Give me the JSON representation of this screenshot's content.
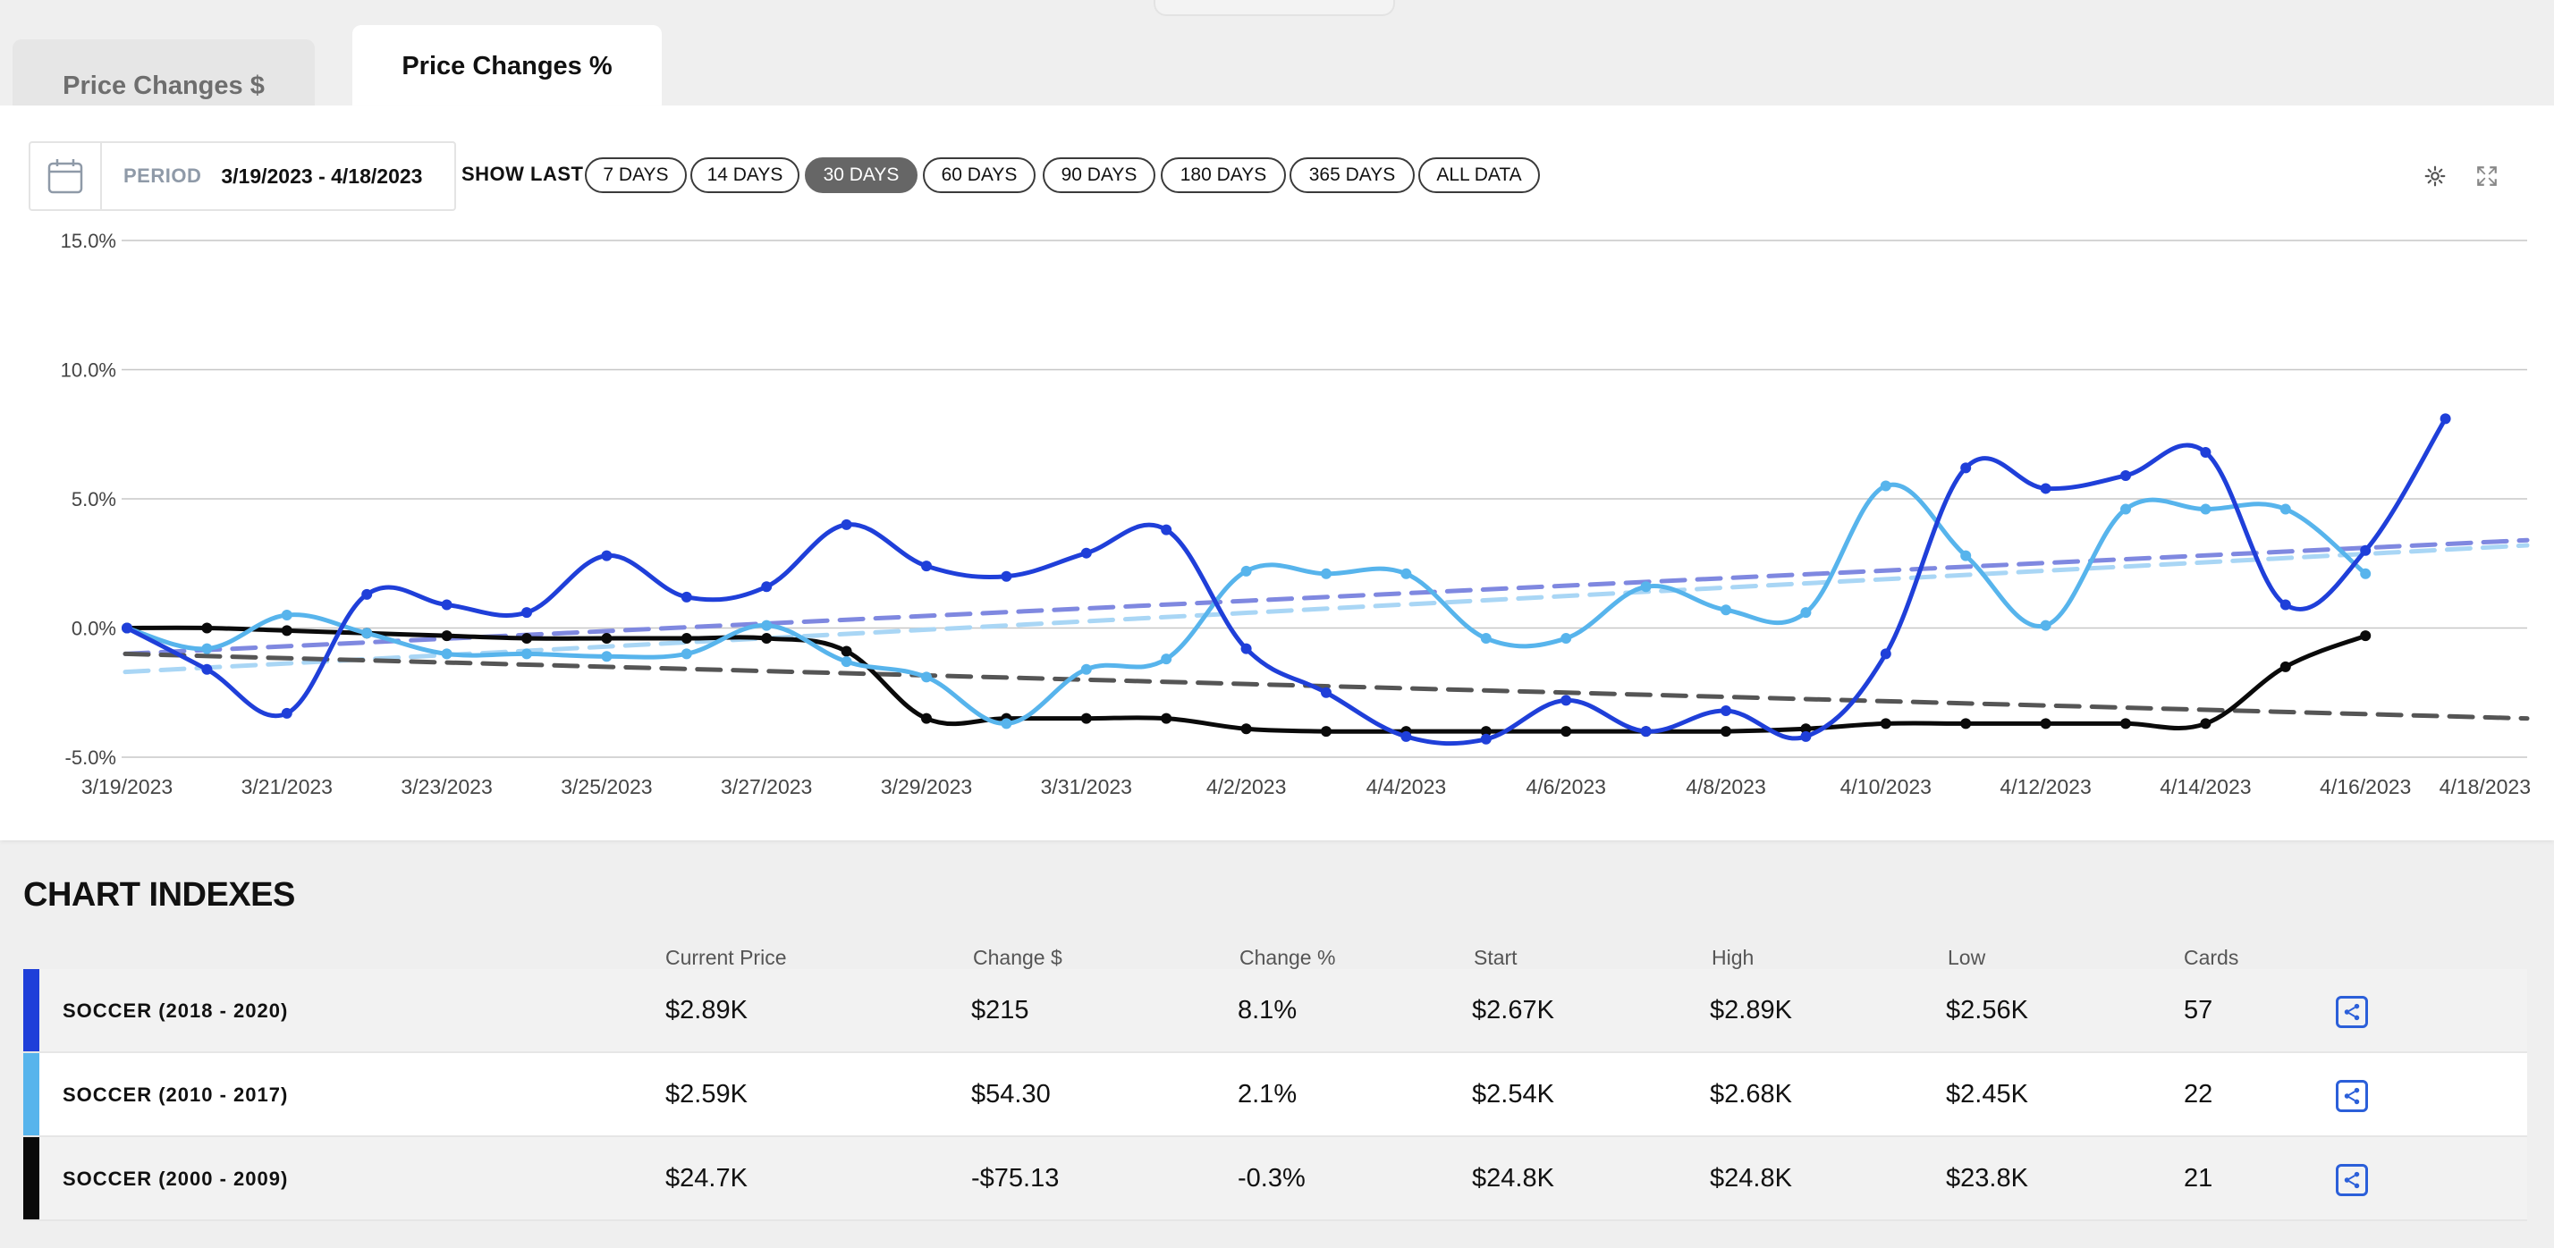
{
  "tabs": [
    {
      "label": "Price Changes $",
      "active": false
    },
    {
      "label": "Price Changes %",
      "active": true
    }
  ],
  "period": {
    "label": "PERIOD",
    "range": "3/19/2023 - 4/18/2023"
  },
  "show_last": {
    "label": "SHOW LAST",
    "options": [
      "7 DAYS",
      "14 DAYS",
      "30 DAYS",
      "60 DAYS",
      "90 DAYS",
      "180 DAYS",
      "365 DAYS",
      "ALL DATA"
    ],
    "selected": "30 DAYS"
  },
  "icons": {
    "calendar": "calendar-icon",
    "settings": "gear-icon",
    "expand": "expand-icon",
    "share": "share-icon"
  },
  "chart_data": {
    "type": "line",
    "y_unit": "%",
    "ylim": [
      -5,
      15
    ],
    "y_ticks": [
      "15.0%",
      "10.0%",
      "5.0%",
      "0.0%",
      "-5.0%"
    ],
    "y_tick_values": [
      15,
      10,
      5,
      0,
      -5
    ],
    "x_ticks": [
      "3/19/2023",
      "3/21/2023",
      "3/23/2023",
      "3/25/2023",
      "3/27/2023",
      "3/29/2023",
      "3/31/2023",
      "4/2/2023",
      "4/4/2023",
      "4/6/2023",
      "4/8/2023",
      "4/10/2023",
      "4/12/2023",
      "4/14/2023",
      "4/16/2023",
      "4/18/2023"
    ],
    "x": [
      "3/19/2023",
      "3/20/2023",
      "3/21/2023",
      "3/22/2023",
      "3/23/2023",
      "3/24/2023",
      "3/25/2023",
      "3/26/2023",
      "3/27/2023",
      "3/28/2023",
      "3/29/2023",
      "3/30/2023",
      "3/31/2023",
      "4/1/2023",
      "4/2/2023",
      "4/3/2023",
      "4/4/2023",
      "4/5/2023",
      "4/6/2023",
      "4/7/2023",
      "4/8/2023",
      "4/9/2023",
      "4/10/2023",
      "4/11/2023",
      "4/12/2023",
      "4/13/2023",
      "4/14/2023",
      "4/15/2023",
      "4/16/2023",
      "4/17/2023"
    ],
    "grid": true,
    "legend": "none",
    "series": [
      {
        "name": "SOCCER (2018 - 2020)",
        "color": "#1f3fd9",
        "values": [
          0.0,
          -1.6,
          -3.3,
          1.3,
          0.9,
          0.6,
          2.8,
          1.2,
          1.6,
          4.0,
          2.4,
          2.0,
          2.9,
          3.8,
          -0.8,
          -2.5,
          -4.2,
          -4.3,
          -2.8,
          -4.0,
          -3.2,
          -4.2,
          -1.0,
          6.2,
          5.4,
          5.9,
          6.8,
          0.9,
          3.0,
          8.1
        ],
        "trend": [
          -1.0,
          3.4
        ],
        "trend_color": "#7f88e0"
      },
      {
        "name": "SOCCER (2010 - 2017)",
        "color": "#57b4ec",
        "values": [
          0.0,
          -0.8,
          0.5,
          -0.2,
          -1.0,
          -1.0,
          -1.1,
          -1.0,
          0.1,
          -1.3,
          -1.9,
          -3.7,
          -1.6,
          -1.2,
          2.2,
          2.1,
          2.1,
          -0.4,
          -0.4,
          1.6,
          0.7,
          0.6,
          5.5,
          2.8,
          0.1,
          4.6,
          4.6,
          4.6,
          2.1,
          null
        ],
        "trend": [
          -1.7,
          3.2
        ],
        "trend_color": "#a9d6f5"
      },
      {
        "name": "SOCCER (2000 - 2009)",
        "color": "#0a0a0a",
        "values": [
          0.0,
          0.0,
          -0.1,
          -0.2,
          -0.3,
          -0.4,
          -0.4,
          -0.4,
          -0.4,
          -0.9,
          -3.5,
          -3.5,
          -3.5,
          -3.5,
          -3.9,
          -4.0,
          -4.0,
          -4.0,
          -4.0,
          -4.0,
          -4.0,
          -3.9,
          -3.7,
          -3.7,
          -3.7,
          -3.7,
          -3.7,
          -1.5,
          -0.3,
          null
        ],
        "trend": [
          -1.0,
          -3.5
        ],
        "trend_color": "#555555"
      }
    ]
  },
  "indexes": {
    "title": "CHART INDEXES",
    "columns": [
      "Current Price",
      "Change $",
      "Change %",
      "Start",
      "High",
      "Low",
      "Cards"
    ],
    "rows": [
      {
        "name": "SOCCER (2018 - 2020)",
        "color": "#1f3fd9",
        "bg": "#f2f2f2",
        "current_price": "$2.89K",
        "change_usd": "$215",
        "change_pct": "8.1%",
        "start": "$2.67K",
        "high": "$2.89K",
        "low": "$2.56K",
        "cards": "57"
      },
      {
        "name": "SOCCER (2010 - 2017)",
        "color": "#57b4ec",
        "bg": "#ffffff",
        "current_price": "$2.59K",
        "change_usd": "$54.30",
        "change_pct": "2.1%",
        "start": "$2.54K",
        "high": "$2.68K",
        "low": "$2.45K",
        "cards": "22"
      },
      {
        "name": "SOCCER (2000 - 2009)",
        "color": "#0a0a0a",
        "bg": "#f2f2f2",
        "current_price": "$24.7K",
        "change_usd": "-$75.13",
        "change_pct": "-0.3%",
        "start": "$24.8K",
        "high": "$24.8K",
        "low": "$23.8K",
        "cards": "21"
      }
    ]
  }
}
